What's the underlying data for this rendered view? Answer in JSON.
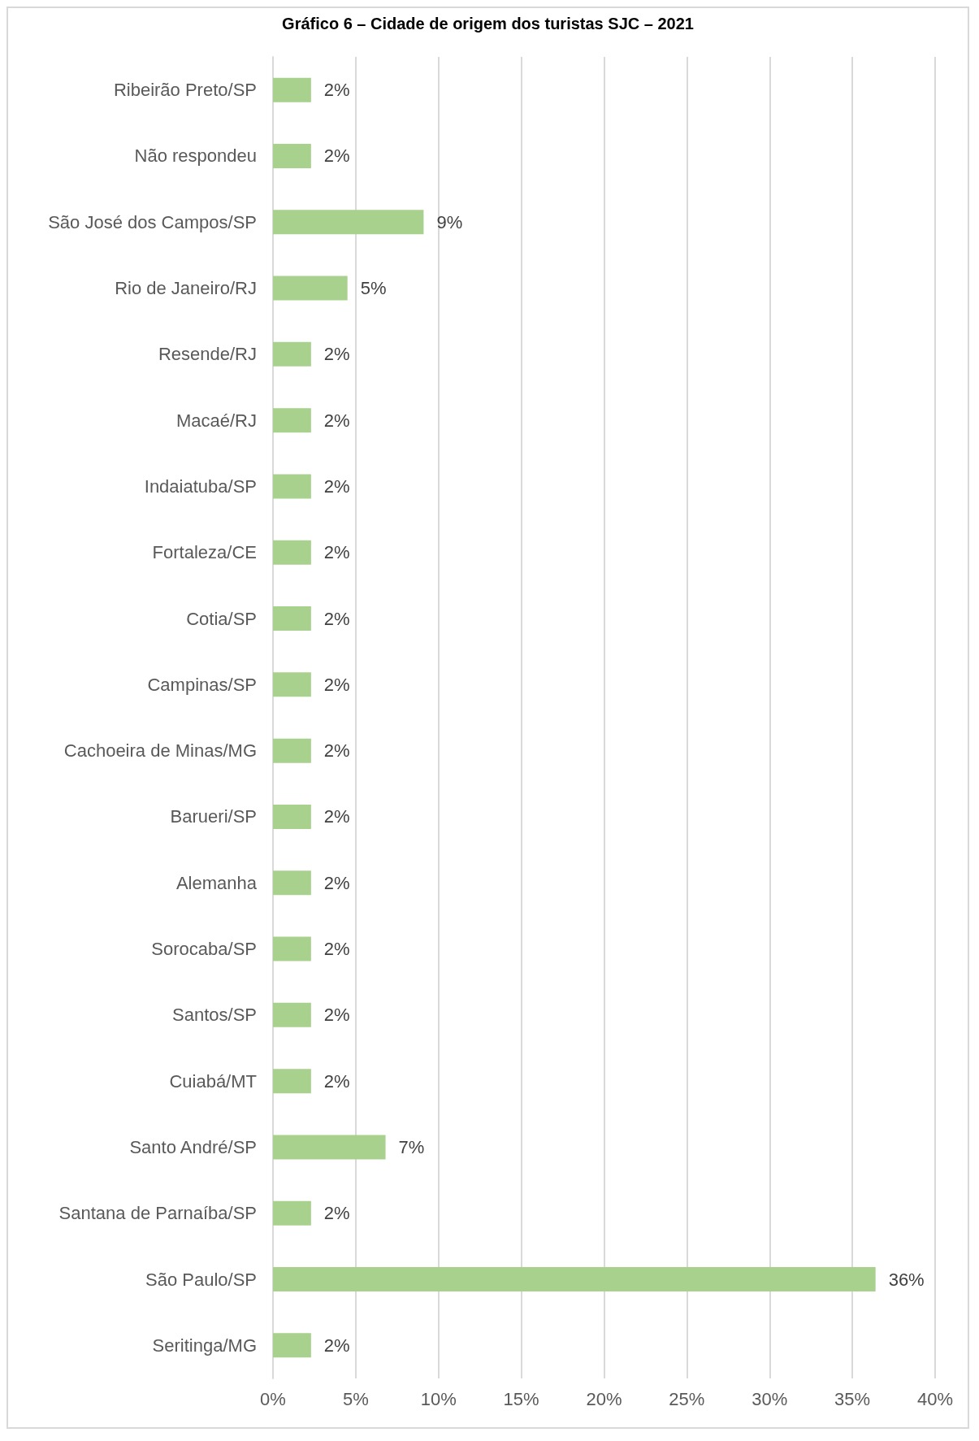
{
  "chart_data": {
    "type": "bar",
    "orientation": "horizontal",
    "title": "Gráfico 6 – Cidade de origem dos turistas SJC – 2021",
    "categories": [
      "Ribeirão Preto/SP",
      "Não respondeu",
      "São José dos Campos/SP",
      "Rio de Janeiro/RJ",
      "Resende/RJ",
      "Macaé/RJ",
      "Indaiatuba/SP",
      "Fortaleza/CE",
      "Cotia/SP",
      "Campinas/SP",
      "Cachoeira de Minas/MG",
      "Barueri/SP",
      "Alemanha",
      "Sorocaba/SP",
      "Santos/SP",
      "Cuiabá/MT",
      "Santo André/SP",
      "Santana de Parnaíba/SP",
      "São Paulo/SP",
      "Seritinga/MG"
    ],
    "values": [
      2.3,
      2.3,
      9.1,
      4.5,
      2.3,
      2.3,
      2.3,
      2.3,
      2.3,
      2.3,
      2.3,
      2.3,
      2.3,
      2.3,
      2.3,
      2.3,
      6.8,
      2.3,
      36.4,
      2.3
    ],
    "value_labels": [
      "2%",
      "2%",
      "9%",
      "5%",
      "2%",
      "2%",
      "2%",
      "2%",
      "2%",
      "2%",
      "2%",
      "2%",
      "2%",
      "2%",
      "2%",
      "2%",
      "7%",
      "2%",
      "36%",
      "2%"
    ],
    "color": "#a9d18e",
    "xlim": [
      0,
      40
    ],
    "xticks": [
      {
        "value": 0,
        "label": "0%"
      },
      {
        "value": 5,
        "label": "5%"
      },
      {
        "value": 10,
        "label": "10%"
      },
      {
        "value": 15,
        "label": "15%"
      },
      {
        "value": 20,
        "label": "20%"
      },
      {
        "value": 25,
        "label": "25%"
      },
      {
        "value": 30,
        "label": "30%"
      },
      {
        "value": 35,
        "label": "35%"
      },
      {
        "value": 40,
        "label": "40%"
      }
    ],
    "grid": "x"
  }
}
